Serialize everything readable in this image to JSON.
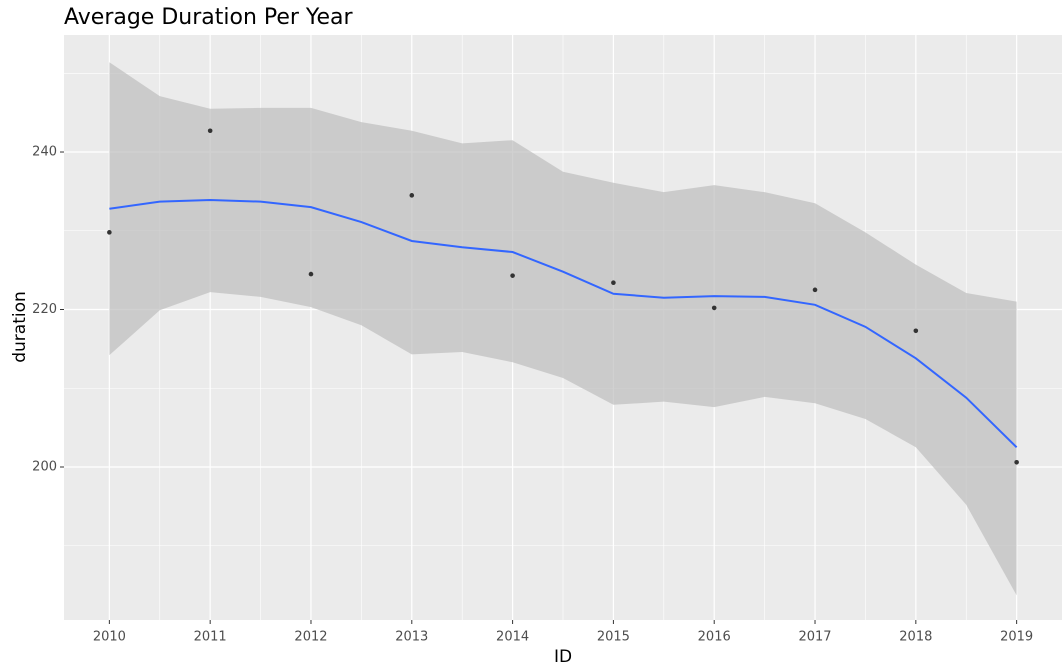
{
  "chart_data": {
    "type": "scatter",
    "title": "Average Duration Per Year",
    "x_label": "ID",
    "y_label": "duration",
    "xlim": [
      2009.55,
      2019.45
    ],
    "ylim": [
      180.57,
      254.86
    ],
    "xticks": [
      2010,
      2011,
      2012,
      2013,
      2014,
      2015,
      2016,
      2017,
      2018,
      2019
    ],
    "yticks": [
      200,
      220,
      240
    ],
    "x_minor_grid": [
      2010.5,
      2011.5,
      2012.5,
      2013.5,
      2014.5,
      2015.5,
      2016.5,
      2017.5,
      2018.5
    ],
    "y_minor_grid": [
      190,
      210,
      230,
      250
    ],
    "grid": true,
    "points": {
      "color": "#333333",
      "x": [
        2010,
        2011,
        2012,
        2013,
        2014,
        2015,
        2016,
        2017,
        2018,
        2019
      ],
      "values": [
        229.8,
        242.7,
        224.5,
        234.5,
        224.3,
        223.4,
        220.2,
        222.5,
        217.3,
        200.6
      ]
    },
    "smooth": {
      "color": "#3366ff",
      "band_color": "#bebebe",
      "x": [
        2010,
        2010.5,
        2011,
        2011.5,
        2012,
        2012.5,
        2013,
        2013.5,
        2014,
        2014.5,
        2015,
        2015.5,
        2016,
        2016.5,
        2017,
        2017.5,
        2018,
        2018.5,
        2019
      ],
      "values": [
        232.8,
        233.7,
        233.9,
        233.7,
        233.0,
        231.1,
        228.7,
        227.9,
        227.3,
        224.8,
        222.0,
        221.5,
        221.7,
        221.6,
        220.6,
        217.8,
        213.8,
        208.8,
        202.5
      ],
      "upper": [
        251.4,
        247.1,
        245.5,
        245.6,
        245.6,
        243.8,
        242.7,
        241.1,
        241.5,
        237.5,
        236.1,
        234.9,
        235.8,
        234.9,
        233.5,
        229.8,
        225.7,
        222.1,
        221.0
      ],
      "lower": [
        214.2,
        219.9,
        222.2,
        221.6,
        220.3,
        218.0,
        214.3,
        214.6,
        213.3,
        211.3,
        207.9,
        208.3,
        207.6,
        208.9,
        208.1,
        206.1,
        202.5,
        195.2,
        183.7
      ]
    }
  }
}
